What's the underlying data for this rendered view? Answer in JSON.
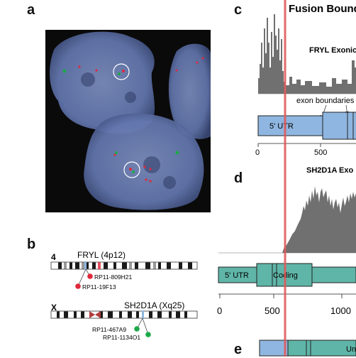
{
  "panels": {
    "a": {
      "letter": "a"
    },
    "b": {
      "letter": "b",
      "chr4": {
        "number": "4",
        "gene": "FRYL (4p12)",
        "probes": [
          "RP11-809H21",
          "RP11-19F13"
        ]
      },
      "chrX": {
        "number": "X",
        "gene": "SH2D1A (Xq25)",
        "probes": [
          "RP11-467A9",
          "RP11-1134O1"
        ]
      }
    },
    "c": {
      "letter": "c",
      "title": "Fusion Bounda",
      "subtitle": "FRYL Exonic",
      "annotation": "exon boundaries",
      "utr_label": "5' UTR",
      "ticks": [
        "0",
        "500"
      ]
    },
    "d": {
      "letter": "d",
      "subtitle": "SH2D1A Exo",
      "utr_label": "5' UTR",
      "coding_label": "Coding",
      "ticks": [
        "0",
        "500",
        "1000"
      ]
    },
    "e": {
      "letter": "e",
      "label": "Un"
    }
  },
  "colors": {
    "fusion_line": "#e05a5a",
    "frYL_bar": "#8fb6e0",
    "sh2d1a_bar": "#5fb5a8",
    "histogram": "#707070",
    "probe_red": "#e0283a",
    "probe_green": "#1ea84a"
  }
}
